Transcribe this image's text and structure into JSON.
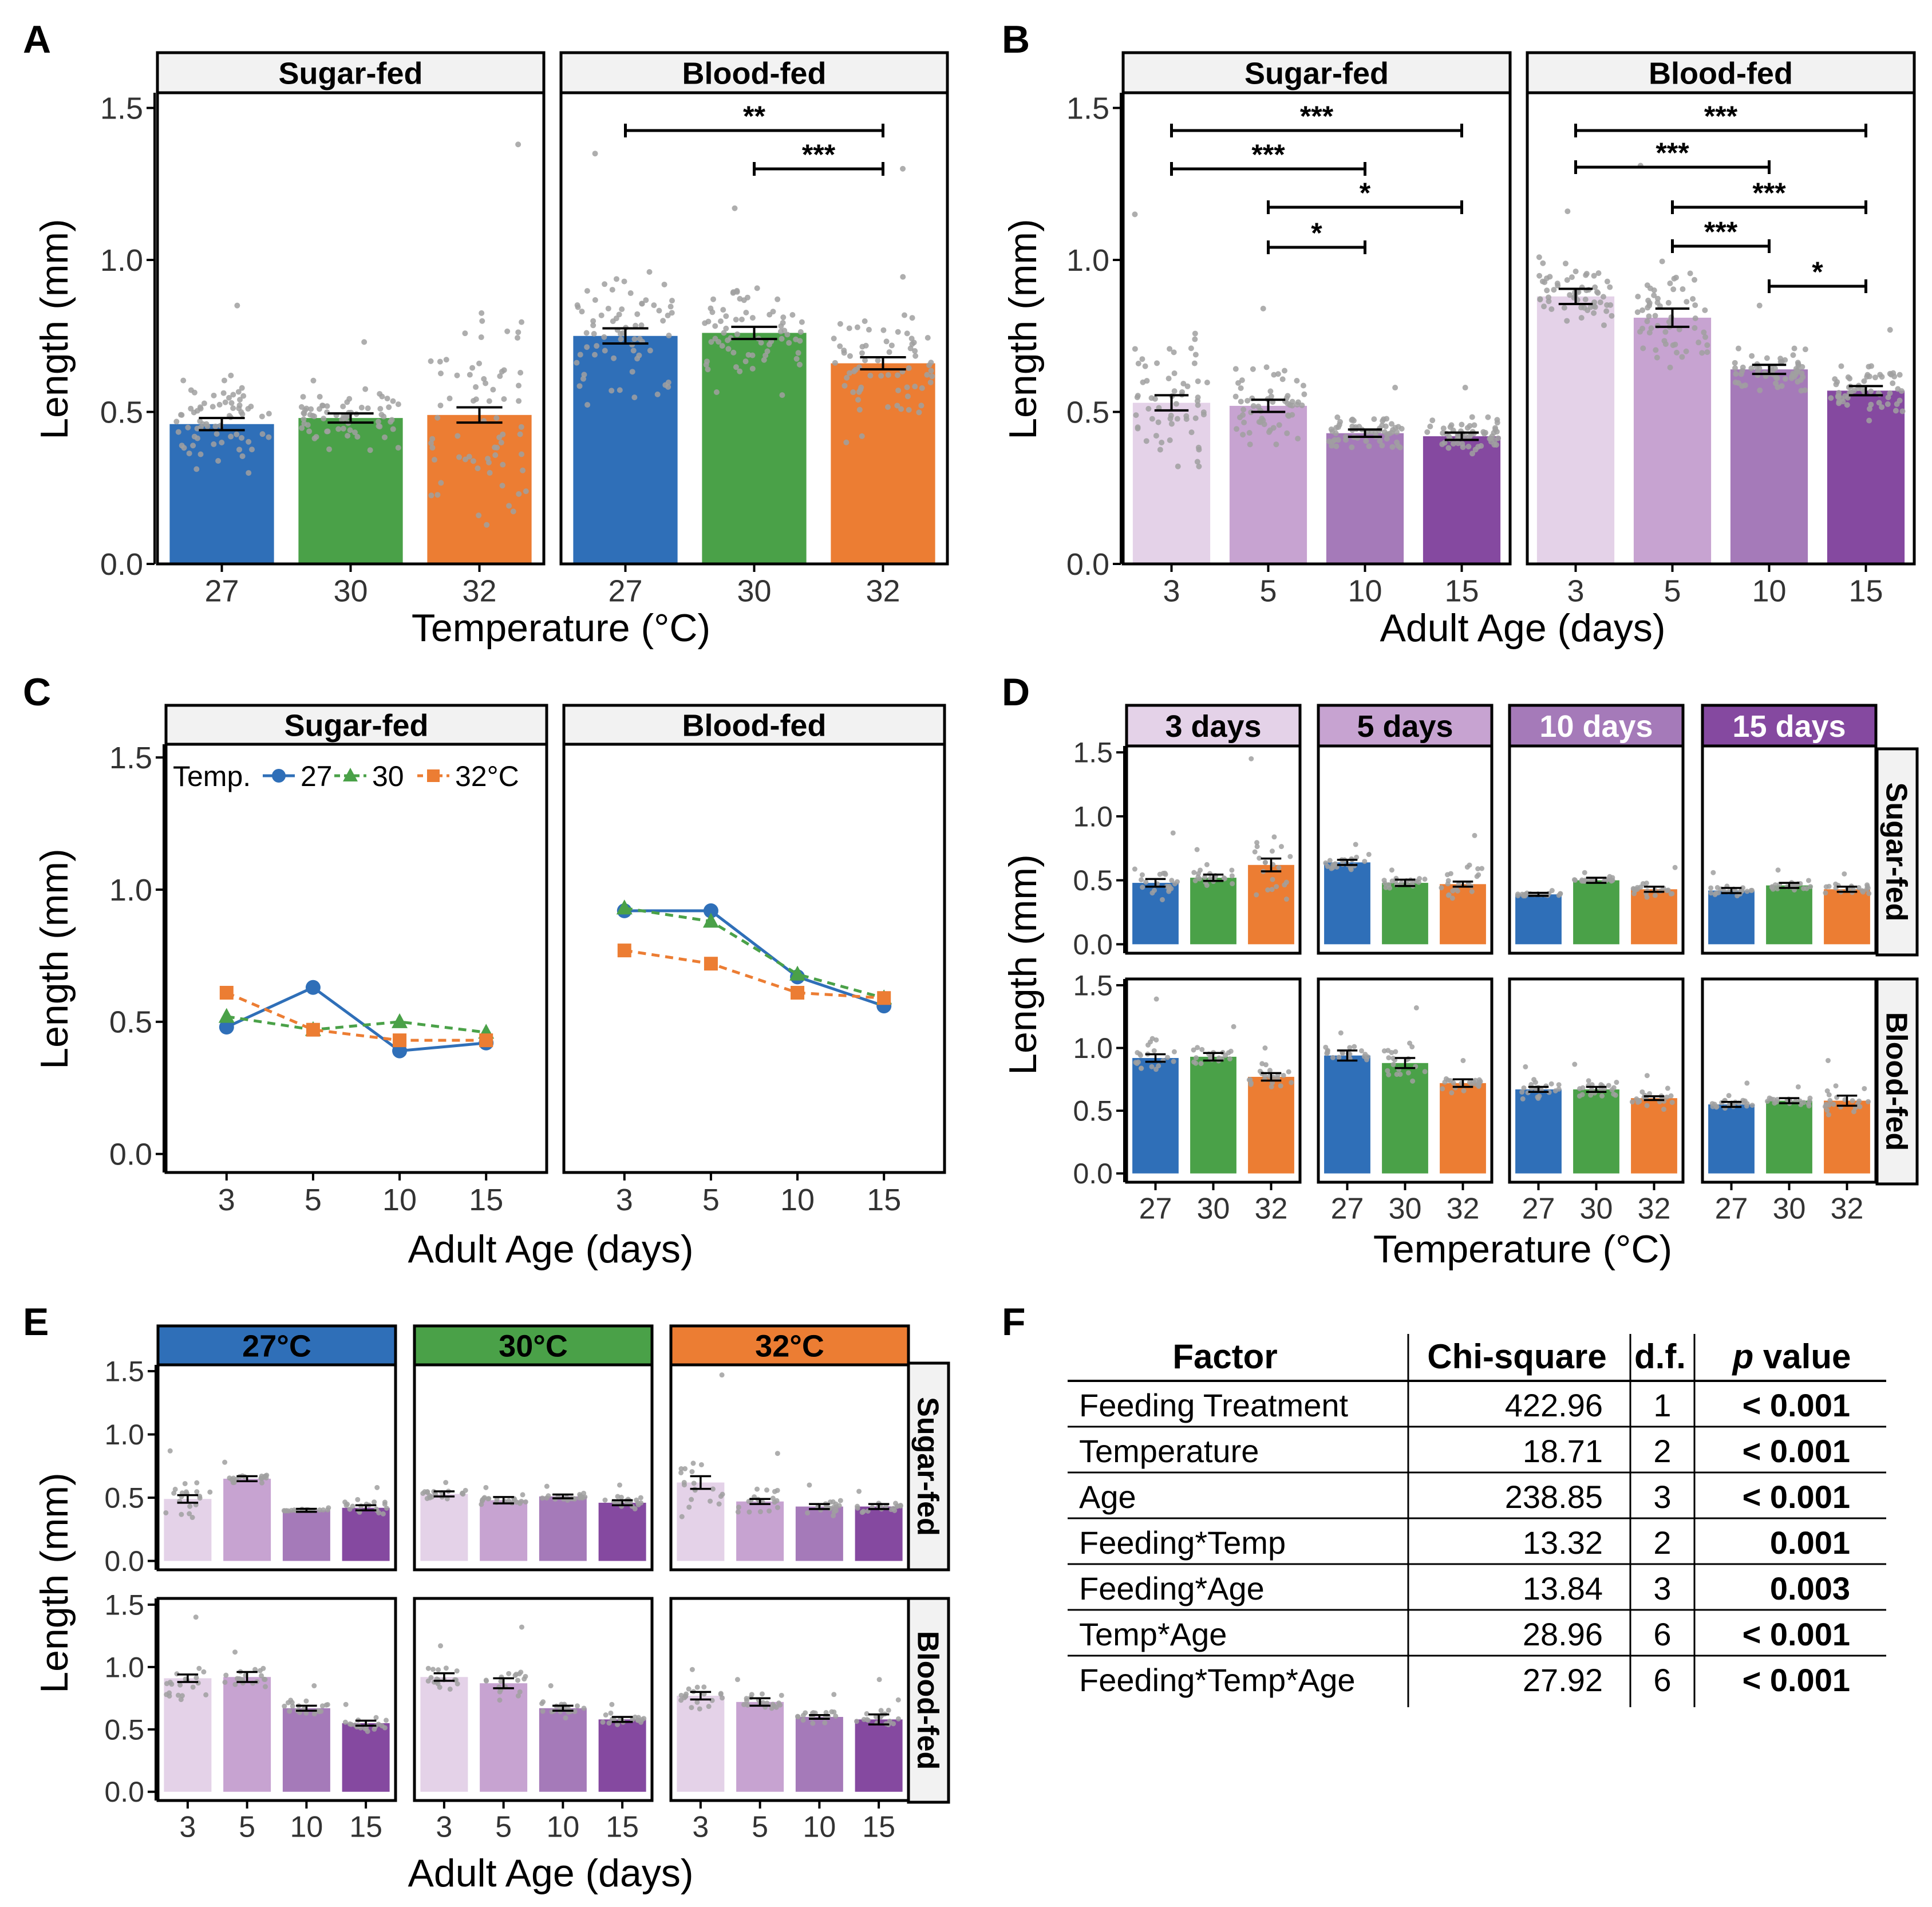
{
  "colors": {
    "temp_27": "#2f6fb8",
    "temp_30": "#4aa148",
    "temp_32": "#ec7d33",
    "age_3": "#e4d2e8",
    "age_5": "#c7a3d1",
    "age_10": "#a57ab9",
    "age_15": "#8549a0",
    "jitter": "#a0a0a0"
  },
  "panel_letters": [
    "A",
    "B",
    "C",
    "D",
    "E",
    "F"
  ],
  "labels": {
    "length_axis": "Length (mm)",
    "temperature_axis": "Temperature (°C)",
    "age_axis": "Adult Age (days)",
    "sugar_fed": "Sugar-fed",
    "blood_fed": "Blood-fed",
    "legend_title": "Temp.",
    "legend_27": "27",
    "legend_30": "30",
    "legend_32": "32°C"
  },
  "chart_data": [
    {
      "id": "A",
      "type": "bar",
      "xlabel": "Temperature (°C)",
      "ylabel": "Length (mm)",
      "ylim": [
        0,
        1.55
      ],
      "yticks": [
        "0.0",
        "0.5",
        "1.0",
        "1.5"
      ],
      "categories": [
        "27",
        "30",
        "32"
      ],
      "facets": [
        {
          "name": "Sugar-fed",
          "values": [
            0.46,
            0.48,
            0.49
          ],
          "errors": [
            0.02,
            0.015,
            0.025
          ],
          "max_points": [
            0.85,
            0.73,
            1.38
          ]
        },
        {
          "name": "Blood-fed",
          "values": [
            0.75,
            0.76,
            0.66
          ],
          "errors": [
            0.025,
            0.02,
            0.02
          ],
          "max_points": [
            1.35,
            1.17,
            1.3
          ],
          "significance": [
            {
              "from": "27",
              "to": "32",
              "label": "**"
            },
            {
              "from": "30",
              "to": "32",
              "label": "***"
            }
          ]
        }
      ]
    },
    {
      "id": "B",
      "type": "bar",
      "xlabel": "Adult Age (days)",
      "ylabel": "Length (mm)",
      "ylim": [
        0,
        1.55
      ],
      "yticks": [
        "0.0",
        "0.5",
        "1.0",
        "1.5"
      ],
      "categories": [
        "3",
        "5",
        "10",
        "15"
      ],
      "facets": [
        {
          "name": "Sugar-fed",
          "values": [
            0.53,
            0.52,
            0.43,
            0.42
          ],
          "errors": [
            0.025,
            0.02,
            0.012,
            0.012
          ],
          "max_points": [
            1.15,
            0.84,
            0.58,
            0.58
          ],
          "significance": [
            {
              "from": "3",
              "to": "15",
              "label": "***"
            },
            {
              "from": "3",
              "to": "10",
              "label": "***"
            },
            {
              "from": "5",
              "to": "15",
              "label": "*"
            },
            {
              "from": "5",
              "to": "10",
              "label": "*"
            }
          ]
        },
        {
          "name": "Blood-fed",
          "values": [
            0.88,
            0.81,
            0.64,
            0.57
          ],
          "errors": [
            0.025,
            0.03,
            0.015,
            0.015
          ],
          "max_points": [
            1.16,
            1.31,
            0.85,
            0.77
          ],
          "significance": [
            {
              "from": "3",
              "to": "15",
              "label": "***"
            },
            {
              "from": "3",
              "to": "10",
              "label": "***"
            },
            {
              "from": "5",
              "to": "15",
              "label": "***"
            },
            {
              "from": "5",
              "to": "10",
              "label": "***"
            },
            {
              "from": "10",
              "to": "15",
              "label": "*"
            }
          ]
        }
      ]
    },
    {
      "id": "C",
      "type": "line",
      "xlabel": "Adult Age (days)",
      "ylabel": "Length (mm)",
      "ylim": [
        -0.07,
        1.55
      ],
      "yticks": [
        "0.0",
        "0.5",
        "1.0",
        "1.5"
      ],
      "x": [
        "3",
        "5",
        "10",
        "15"
      ],
      "facets": [
        {
          "name": "Sugar-fed",
          "series": [
            {
              "name": "27",
              "values": [
                0.48,
                0.63,
                0.39,
                0.42
              ]
            },
            {
              "name": "30",
              "values": [
                0.52,
                0.47,
                0.5,
                0.46
              ]
            },
            {
              "name": "32°C",
              "values": [
                0.61,
                0.47,
                0.43,
                0.43
              ]
            }
          ]
        },
        {
          "name": "Blood-fed",
          "series": [
            {
              "name": "27",
              "values": [
                0.92,
                0.92,
                0.67,
                0.56
              ]
            },
            {
              "name": "30",
              "values": [
                0.93,
                0.88,
                0.68,
                0.59
              ]
            },
            {
              "name": "32°C",
              "values": [
                0.77,
                0.72,
                0.61,
                0.59
              ]
            }
          ]
        }
      ]
    },
    {
      "id": "D",
      "type": "bar",
      "xlabel": "Temperature (°C)",
      "ylabel": "Length (mm)",
      "ylim": [
        -0.07,
        1.55
      ],
      "yticks": [
        "0.0",
        "0.5",
        "1.0",
        "1.5"
      ],
      "categories": [
        "27",
        "30",
        "32"
      ],
      "columns": [
        "3 days",
        "5 days",
        "10 days",
        "15 days"
      ],
      "rows": [
        "Sugar-fed",
        "Blood-fed"
      ],
      "cells": [
        [
          {
            "values": [
              0.48,
              0.52,
              0.62
            ],
            "errors": [
              0.03,
              0.025,
              0.05
            ],
            "max_points": [
              0.87,
              0.74,
              1.45
            ]
          },
          {
            "values": [
              0.64,
              0.48,
              0.47
            ],
            "errors": [
              0.02,
              0.025,
              0.02
            ],
            "max_points": [
              0.78,
              0.58,
              0.85
            ]
          },
          {
            "values": [
              0.39,
              0.5,
              0.43
            ],
            "errors": [
              0.012,
              0.02,
              0.02
            ],
            "max_points": [
              0.42,
              0.56,
              0.6
            ]
          },
          {
            "values": [
              0.42,
              0.46,
              0.43
            ],
            "errors": [
              0.02,
              0.02,
              0.02
            ],
            "max_points": [
              0.56,
              0.58,
              0.55
            ]
          }
        ],
        [
          {
            "values": [
              0.92,
              0.93,
              0.77
            ],
            "errors": [
              0.03,
              0.03,
              0.03
            ],
            "max_points": [
              1.39,
              1.17,
              1.0
            ]
          },
          {
            "values": [
              0.94,
              0.88,
              0.72
            ],
            "errors": [
              0.04,
              0.04,
              0.03
            ],
            "max_points": [
              1.12,
              1.32,
              0.9
            ]
          },
          {
            "values": [
              0.67,
              0.67,
              0.6
            ],
            "errors": [
              0.02,
              0.02,
              0.015
            ],
            "max_points": [
              0.85,
              0.87,
              0.78
            ]
          },
          {
            "values": [
              0.55,
              0.58,
              0.58
            ],
            "errors": [
              0.02,
              0.02,
              0.04
            ],
            "max_points": [
              0.72,
              0.69,
              0.9
            ]
          }
        ]
      ]
    },
    {
      "id": "E",
      "type": "bar",
      "xlabel": "Adult Age (days)",
      "ylabel": "Length (mm)",
      "ylim": [
        -0.07,
        1.55
      ],
      "yticks": [
        "0.0",
        "0.5",
        "1.0",
        "1.5"
      ],
      "categories": [
        "3",
        "5",
        "10",
        "15"
      ],
      "columns": [
        "27°C",
        "30°C",
        "32°C"
      ],
      "rows": [
        "Sugar-fed",
        "Blood-fed"
      ],
      "cells": [
        [
          {
            "values": [
              0.49,
              0.65,
              0.4,
              0.42
            ],
            "errors": [
              0.03,
              0.02,
              0.012,
              0.02
            ],
            "max_points": [
              0.87,
              0.78,
              0.42,
              0.58
            ]
          },
          {
            "values": [
              0.53,
              0.48,
              0.51,
              0.46
            ],
            "errors": [
              0.02,
              0.025,
              0.015,
              0.02
            ],
            "max_points": [
              0.62,
              0.58,
              0.59,
              0.6
            ]
          },
          {
            "values": [
              0.62,
              0.47,
              0.43,
              0.43
            ],
            "errors": [
              0.05,
              0.02,
              0.02,
              0.02
            ],
            "max_points": [
              1.47,
              0.85,
              0.6,
              0.55
            ]
          }
        ],
        [
          {
            "values": [
              0.91,
              0.92,
              0.67,
              0.55
            ],
            "errors": [
              0.03,
              0.04,
              0.02,
              0.02
            ],
            "max_points": [
              1.4,
              1.12,
              0.85,
              0.7
            ]
          },
          {
            "values": [
              0.92,
              0.87,
              0.67,
              0.58
            ],
            "errors": [
              0.03,
              0.04,
              0.02,
              0.02
            ],
            "max_points": [
              1.17,
              1.32,
              0.85,
              0.7
            ]
          },
          {
            "values": [
              0.77,
              0.72,
              0.6,
              0.58
            ],
            "errors": [
              0.03,
              0.03,
              0.015,
              0.04
            ],
            "max_points": [
              0.98,
              0.9,
              0.78,
              0.9
            ]
          }
        ]
      ]
    },
    {
      "id": "F",
      "type": "table",
      "columns": [
        "Factor",
        "Chi-square",
        "d.f.",
        "p value"
      ],
      "rows": [
        [
          "Feeding Treatment",
          "422.96",
          "1",
          "< 0.001"
        ],
        [
          "Temperature",
          "18.71",
          "2",
          "< 0.001"
        ],
        [
          "Age",
          "238.85",
          "3",
          "< 0.001"
        ],
        [
          "Feeding*Temp",
          "13.32",
          "2",
          "0.001"
        ],
        [
          "Feeding*Age",
          "13.84",
          "3",
          "0.003"
        ],
        [
          "Temp*Age",
          "28.96",
          "6",
          "< 0.001"
        ],
        [
          "Feeding*Temp*Age",
          "27.92",
          "6",
          "< 0.001"
        ]
      ]
    }
  ]
}
